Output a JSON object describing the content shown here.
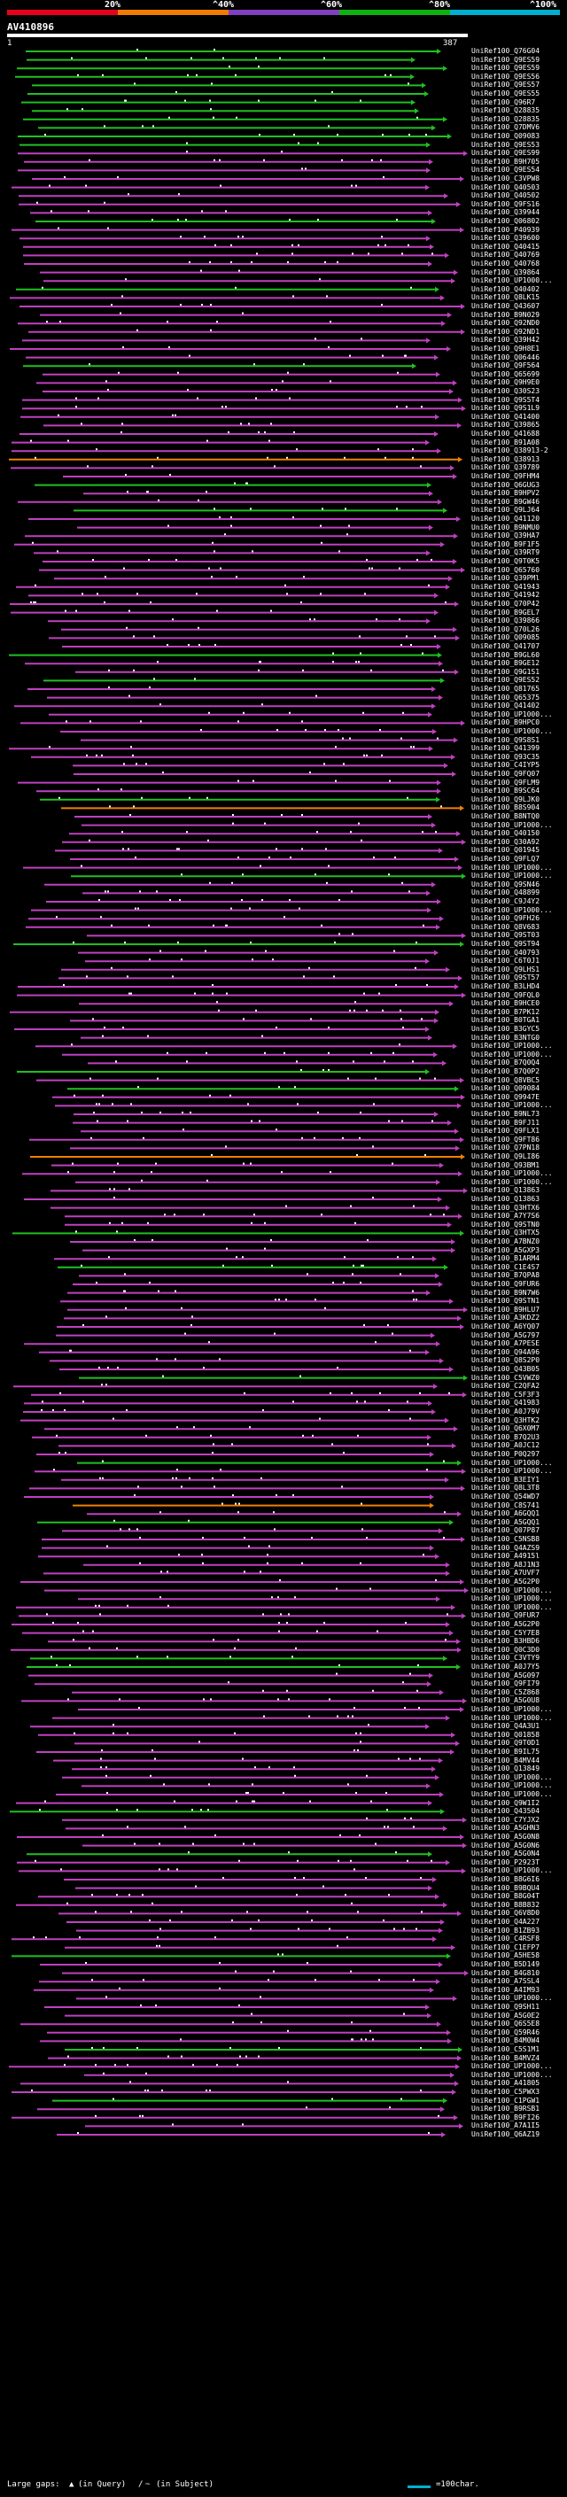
{
  "legend": {
    "labels": [
      "20%",
      "^40%",
      "^60%",
      "^80%",
      "^100%"
    ],
    "colors": [
      "#e8001c",
      "#f07c00",
      "#8040c0",
      "#10b010",
      "#00b0d0"
    ]
  },
  "query": {
    "title": "AV410896",
    "start": "1",
    "end": "387"
  },
  "colors": {
    "magenta": "#c040c0",
    "green": "#20c020",
    "orange": "#f08000",
    "white": "#ffffff"
  },
  "hits": [
    "UniRef100_Q76G04",
    "UniRef100_Q9ES59",
    "UniRef100_Q9ES59",
    "UniRef100_Q9ES56",
    "UniRef100_Q9ES57",
    "UniRef100_Q9ES55",
    "UniRef100_Q96R7",
    "UniRef100_Q28835",
    "UniRef100_Q28835",
    "UniRef100_Q7DMV6",
    "UniRef100_Q09083",
    "UniRef100_Q9ES53",
    "UniRef100_Q9ES99",
    "UniRef100_B9H705",
    "UniRef100_Q9ES54",
    "UniRef100_C3VPW8",
    "UniRef100_Q40503",
    "UniRef100_Q40502",
    "UniRef100_Q9FS16",
    "UniRef100_Q39944",
    "UniRef100_Q06802",
    "UniRef100_P40939",
    "UniRef100_Q39600",
    "UniRef100_Q40415",
    "UniRef100_Q40769",
    "UniRef100_Q40768",
    "UniRef100_Q39864",
    "UniRef100_UP1000...",
    "UniRef100_Q40402",
    "UniRef100_Q8LK15",
    "UniRef100_Q43607",
    "UniRef100_B9N029",
    "UniRef100_Q92ND0",
    "UniRef100_Q92ND1",
    "UniRef100_Q39H42",
    "UniRef100_Q9H8E1",
    "UniRef100_Q06446",
    "UniRef100_Q9F564",
    "UniRef100_Q65699",
    "UniRef100_Q9H9E0",
    "UniRef100_Q30S23",
    "UniRef100_Q9S5T4",
    "UniRef100_Q9S1L9",
    "UniRef100_Q41400",
    "UniRef100_Q39865",
    "UniRef100_Q41688",
    "UniRef100_B91A08",
    "UniRef100_Q38913-2",
    "UniRef100_Q38913",
    "UniRef100_Q39789",
    "UniRef100_Q9FHM4",
    "UniRef100_Q6GUG3",
    "UniRef100_B9HPV2",
    "UniRef100_B9GW46",
    "UniRef100_Q9LJ64",
    "UniRef100_Q41120",
    "UniRef100_B9NMU0",
    "UniRef100_Q39HA7",
    "UniRef100_B9F1F5",
    "UniRef100_Q39RT9",
    "UniRef100_Q9T0K5",
    "UniRef100_Q65760",
    "UniRef100_Q39PMl",
    "UniRef100_Q41943",
    "UniRef100_Q41942",
    "UniRef100_Q70P42",
    "UniRef100_B9GEL7",
    "UniRef100_Q39866",
    "UniRef100_Q70L26",
    "UniRef100_Q09085",
    "UniRef100_Q41707",
    "UniRef100_B9GL60",
    "UniRef100_B9GE12",
    "UniRef100_Q9G1S1",
    "UniRef100_Q9ES52",
    "UniRef100_Q81765",
    "UniRef100_Q65375",
    "UniRef100_Q41402",
    "UniRef100_UP1000...",
    "UniRef100_B9HPC0",
    "UniRef100_UP1000...",
    "UniRef100_Q9S8S1",
    "UniRef100_Q41399",
    "UniRef100_Q93C35",
    "UniRef100_C4IYP5",
    "UniRef100_Q9FQ07",
    "UniRef100_Q9FLM9",
    "UniRef100_B9SC64",
    "UniRef100_Q9LJK0",
    "UniRef100_B8S904",
    "UniRef100_B8NTQ0",
    "UniRef100_UP1000...",
    "UniRef100_Q40150",
    "UniRef100_Q30A92",
    "UniRef100_Q01945",
    "UniRef100_Q9FLQ7",
    "UniRef100_UP1000...",
    "UniRef100_UP1000...",
    "UniRef100_Q9SN46",
    "UniRef100_Q48899",
    "UniRef100_C9J4Y2",
    "UniRef100_UP1000...",
    "UniRef100_Q9FH26",
    "UniRef100_Q8V683",
    "UniRef100_Q9ST03",
    "UniRef100_Q9ST94",
    "UniRef100_Q40793",
    "UniRef100_C6T0J1",
    "UniRef100_Q9LHS1",
    "UniRef100_Q9ST57",
    "UniRef100_B3LHD4",
    "UniRef100_Q9FQL0",
    "UniRef100_B9HCE0",
    "UniRef100_B7PK12",
    "UniRef100_B0TGA1",
    "UniRef100_B3GYC5",
    "UniRef100_B3NTG0",
    "UniRef100_UP1000...",
    "UniRef100_UP1000...",
    "UniRef100_B7Q0Q4",
    "UniRef100_B7Q0P2",
    "UniRef100_Q8VBC5",
    "UniRef100_Q09084",
    "UniRef100_Q9947E",
    "UniRef100_UP1000...",
    "UniRef100_B9NL73",
    "UniRef100_B9FJ11",
    "UniRef100_Q9FLX1",
    "UniRef100_Q9FT86",
    "UniRef100_Q7PN18",
    "UniRef100_Q9LI86",
    "UniRef100_Q93BM1",
    "UniRef100_UP1000...",
    "UniRef100_UP1000...",
    "UniRef100_Q13863",
    "UniRef100_Q13863",
    "UniRef100_Q3HTX6",
    "UniRef100_A7Y7S6",
    "UniRef100_Q9STN0",
    "UniRef100_Q3HTX5",
    "UniRef100_A7BNZ0",
    "UniRef100_A5GXP3",
    "UniRef100_B1ARM4",
    "UniRef100_C1E4S7",
    "UniRef100_B7QPA8",
    "UniRef100_Q9FUR6",
    "UniRef100_B9N7W6",
    "UniRef100_Q9STN1",
    "UniRef100_B9HLU7",
    "UniRef100_A3KDZ2",
    "UniRef100_A6YQ07",
    "UniRef100_A5G797",
    "UniRef100_A7PESE",
    "UniRef100_Q94A96",
    "UniRef100_Q8S2P0",
    "UniRef100_Q43B05",
    "UniRef100_C5VWZ0",
    "UniRef100_C2QFA2",
    "UniRef100_C5F3F3",
    "UniRef100_Q41983",
    "UniRef100_A0J79V",
    "UniRef100_Q3HTK2",
    "UniRef100_Q6X0M7",
    "UniRef100_B7Q2U3",
    "UniRef100_A0JC12",
    "UniRef100_P0Q297",
    "UniRef100_UP1000...",
    "UniRef100_UP1000...",
    "UniRef100_B3EIY1",
    "UniRef100_Q8L3T8",
    "UniRef100_Q54WD7",
    "UniRef100_C8S741",
    "UniRef100_A6GQQ1",
    "UniRef100_A5GQQ1",
    "UniRef100_Q07P87",
    "UniRef100_C5NSB8",
    "UniRef100_Q4AZS9",
    "UniRef100_A4915l",
    "UniRef100_A8J1N3",
    "UniRef100_A7UVF7",
    "UniRef100_A5G2P0",
    "UniRef100_UP1000...",
    "UniRef100_UP1000...",
    "UniRef100_UP1000...",
    "UniRef100_Q9FUR7",
    "UniRef100_A5G2P0",
    "UniRef100_C5Y7E8",
    "UniRef100_B3HBD6",
    "UniRef100_Q0C3D0",
    "UniRef100_C3VTY9",
    "UniRef100_A0J7Y5",
    "UniRef100_A5G097",
    "UniRef100_Q9FI79",
    "UniRef100_C5Z868",
    "UniRef100_A5G0U8",
    "UniRef100_UP1000...",
    "UniRef100_UP1000...",
    "UniRef100_Q4A3U1",
    "UniRef100_Q01858",
    "UniRef100_Q9T0D1",
    "UniRef100_B9IL75",
    "UniRef100_B4MV44",
    "UniRef100_Q13849",
    "UniRef100_UP1000...",
    "UniRef100_UP1000...",
    "UniRef100_UP1000...",
    "UniRef100_Q9W1I2",
    "UniRef100_Q43504",
    "UniRef100_C7YJX2",
    "UniRef100_A5GHN3",
    "UniRef100_A5G0N8",
    "UniRef100_A5G0N6",
    "UniRef100_A5G0N4",
    "UniRef100_P2923T",
    "UniRef100_UP1000...",
    "UniRef100_B8G6I6",
    "UniRef100_B9BQU4",
    "UniRef100_B8G04T",
    "UniRef100_B8B832",
    "UniRef100_Q6V8D0",
    "UniRef100_Q4A227",
    "UniRef100_B1ZB93",
    "UniRef100_C4RSF8",
    "UniRef100_C1EFP7",
    "UniRef100_A5HE58",
    "UniRef100_B5D149",
    "UniRef100_B4G810",
    "UniRef100_A7SSL4",
    "UniRef100_A4IM93",
    "UniRef100_UP1000...",
    "UniRef100_Q9SH11",
    "UniRef100_A5G0E2",
    "UniRef100_Q6S5E8",
    "UniRef100_Q59R46",
    "UniRef100_B4M0W4",
    "UniRef100_C5S1M1",
    "UniRef100_B4MVZ4",
    "UniRef100_UP1000...",
    "UniRef100_UP1000...",
    "UniRef100_A41805",
    "UniRef100_C5PWX3",
    "UniRef100_C1PGW1",
    "UniRef100_B9RSB1",
    "UniRef100_B9FI26",
    "UniRef100_A7A1I5",
    "UniRef100_Q6AZ19"
  ],
  "footer": {
    "large_gaps_label": "Large gaps:",
    "query_gap": "(in Query)",
    "subject_gap": "(in Subject)",
    "scale_label": "=100char."
  }
}
